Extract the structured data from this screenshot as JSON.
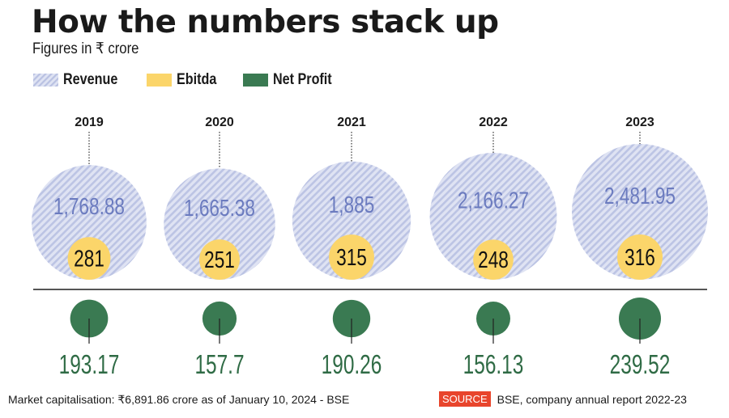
{
  "header": {
    "title": "How the numbers stack up",
    "subtitle": "Figures in ₹ crore"
  },
  "legend": [
    {
      "label": "Revenue",
      "color": "#c9cfe8",
      "pattern": "hatched"
    },
    {
      "label": "Ebitda",
      "color": "#fbd56a",
      "pattern": "solid"
    },
    {
      "label": "Net Profit",
      "color": "#3a7a52",
      "pattern": "solid"
    }
  ],
  "colors": {
    "revenue_fill": "#dfe3f3",
    "revenue_hatch": "#b9c1e2",
    "revenue_text": "#6b7bbf",
    "ebitda_fill": "#fbd56a",
    "net_profit_fill": "#3a7a52",
    "net_profit_text": "#2f6b45",
    "source_badge": "#e8452c"
  },
  "chart_data": {
    "type": "bubble",
    "title": "How the numbers stack up",
    "subtitle": "Figures in ₹ crore",
    "categories": [
      "2019",
      "2020",
      "2021",
      "2022",
      "2023"
    ],
    "series": [
      {
        "name": "Revenue",
        "values": [
          1768.88,
          1665.38,
          1885,
          2166.27,
          2481.95
        ],
        "labels": [
          "1,768.88",
          "1,665.38",
          "1,885",
          "2,166.27",
          "2,481.95"
        ]
      },
      {
        "name": "Ebitda",
        "values": [
          281,
          251,
          315,
          248,
          316
        ],
        "labels": [
          "281",
          "251",
          "315",
          "248",
          "316"
        ]
      },
      {
        "name": "Net Profit",
        "values": [
          193.17,
          157.7,
          190.26,
          156.13,
          239.52
        ],
        "labels": [
          "193.17",
          "157.7",
          "190.26",
          "156.13",
          "239.52"
        ]
      }
    ],
    "legend_position": "top-left"
  },
  "footer": {
    "note": "Market capitalisation: ₹6,891.86 crore as of January 10, 2024 - BSE",
    "source_label": "SOURCE",
    "source_text": "BSE, company annual report 2022-23"
  }
}
